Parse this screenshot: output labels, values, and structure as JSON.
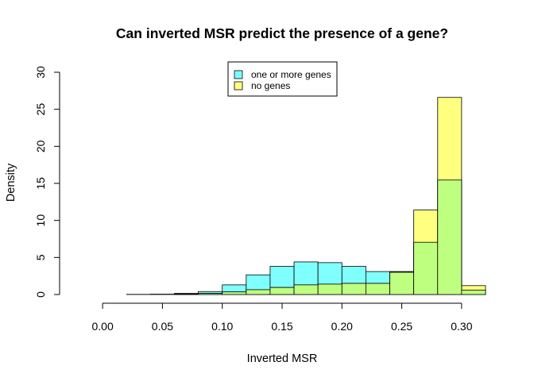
{
  "chart_data": {
    "type": "bar",
    "title": "Can inverted MSR predict the presence of a gene?",
    "xlabel": "Inverted MSR",
    "ylabel": "Density",
    "xlim": [
      -0.02,
      0.32
    ],
    "ylim": [
      0,
      30
    ],
    "x_ticks": [
      "0.00",
      "0.05",
      "0.10",
      "0.15",
      "0.20",
      "0.25",
      "0.30"
    ],
    "x_tick_values": [
      0.0,
      0.05,
      0.1,
      0.15,
      0.2,
      0.25,
      0.3
    ],
    "y_ticks": [
      "0",
      "5",
      "10",
      "15",
      "20",
      "25",
      "30"
    ],
    "y_tick_values": [
      0,
      5,
      10,
      15,
      20,
      25,
      30
    ],
    "bin_edges": [
      -0.02,
      0.0,
      0.02,
      0.04,
      0.06,
      0.08,
      0.1,
      0.12,
      0.14,
      0.16,
      0.18,
      0.2,
      0.22,
      0.24,
      0.26,
      0.28,
      0.3,
      0.32
    ],
    "legend_position": "top-center",
    "overlap_color": "#bfff80",
    "series": [
      {
        "name": "one or more genes",
        "color": "#80ffff",
        "values": [
          0.0,
          0.0,
          0.02,
          0.05,
          0.15,
          0.4,
          1.3,
          2.65,
          3.8,
          4.4,
          4.3,
          3.8,
          3.1,
          3.1,
          7.05,
          15.45,
          0.6
        ]
      },
      {
        "name": "no genes",
        "color": "#ffff80",
        "values": [
          0.0,
          0.0,
          0.0,
          0.0,
          0.05,
          0.15,
          0.35,
          0.65,
          0.95,
          1.3,
          1.4,
          1.5,
          1.5,
          3.0,
          11.4,
          26.6,
          1.2
        ]
      }
    ]
  }
}
